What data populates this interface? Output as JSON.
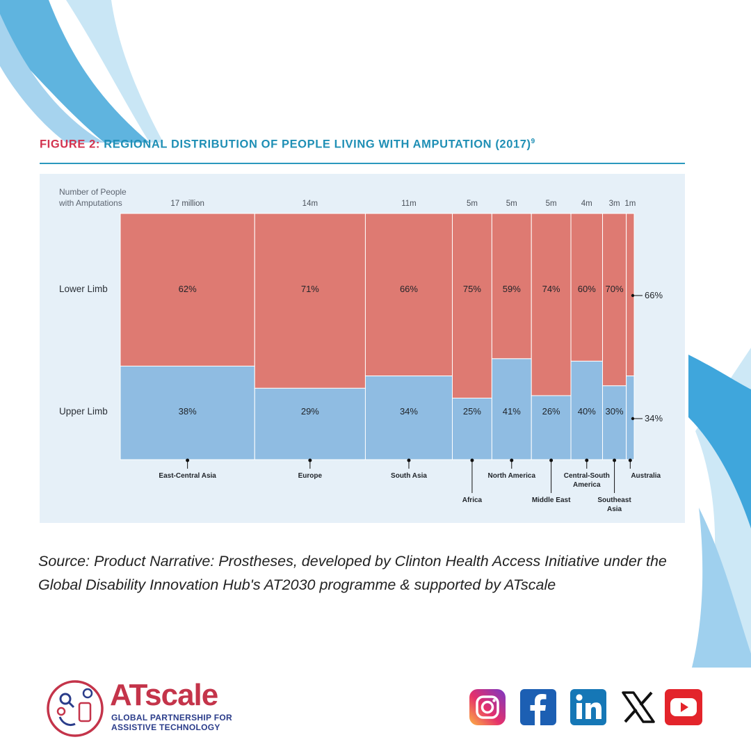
{
  "figure": {
    "label": "FIGURE 2:",
    "title": "REGIONAL DISTRIBUTION OF PEOPLE LIVING WITH AMPUTATION (2017)",
    "footnote": "9"
  },
  "chart_data": {
    "type": "mosaic",
    "header_label_line1": "Number of People",
    "header_label_line2": "with Amputations",
    "row_labels": [
      "Lower Limb",
      "Upper Limb"
    ],
    "categories": [
      {
        "region": "East-Central Asia",
        "people_label": "17 million",
        "people_millions": 17,
        "lower_pct": 62,
        "upper_pct": 38
      },
      {
        "region": "Europe",
        "people_label": "14m",
        "people_millions": 14,
        "lower_pct": 71,
        "upper_pct": 29
      },
      {
        "region": "South Asia",
        "people_label": "11m",
        "people_millions": 11,
        "lower_pct": 66,
        "upper_pct": 34
      },
      {
        "region": "Africa",
        "people_label": "5m",
        "people_millions": 5,
        "lower_pct": 75,
        "upper_pct": 25
      },
      {
        "region": "North America",
        "people_label": "5m",
        "people_millions": 5,
        "lower_pct": 59,
        "upper_pct": 41
      },
      {
        "region": "Middle East",
        "people_label": "5m",
        "people_millions": 5,
        "lower_pct": 74,
        "upper_pct": 26
      },
      {
        "region": "Central-South America",
        "people_label": "4m",
        "people_millions": 4,
        "lower_pct": 60,
        "upper_pct": 40
      },
      {
        "region": "Southeast Asia",
        "people_label": "3m",
        "people_millions": 3,
        "lower_pct": 70,
        "upper_pct": 30
      },
      {
        "region": "Australia",
        "people_label": "1m",
        "people_millions": 1,
        "lower_pct": 66,
        "upper_pct": 34
      }
    ],
    "colors": {
      "lower": "#de7a72",
      "upper": "#8fbce2"
    }
  },
  "source_text": "Source: Product Narrative: Prostheses, developed by Clinton Health Access Initiative under the Global Disability Innovation Hub's AT2030 programme & supported by ATscale",
  "logo": {
    "brand": "ATscale",
    "tagline_line1": "GLOBAL PARTNERSHIP FOR",
    "tagline_line2": "ASSISTIVE TECHNOLOGY"
  },
  "social": [
    {
      "name": "Instagram",
      "icon": "instagram-icon"
    },
    {
      "name": "Facebook",
      "icon": "facebook-icon"
    },
    {
      "name": "LinkedIn",
      "icon": "linkedin-icon"
    },
    {
      "name": "X",
      "icon": "x-icon"
    },
    {
      "name": "YouTube",
      "icon": "youtube-icon"
    }
  ],
  "theme": {
    "accent_red": "#d2334f",
    "accent_blue": "#1f8fb5"
  }
}
